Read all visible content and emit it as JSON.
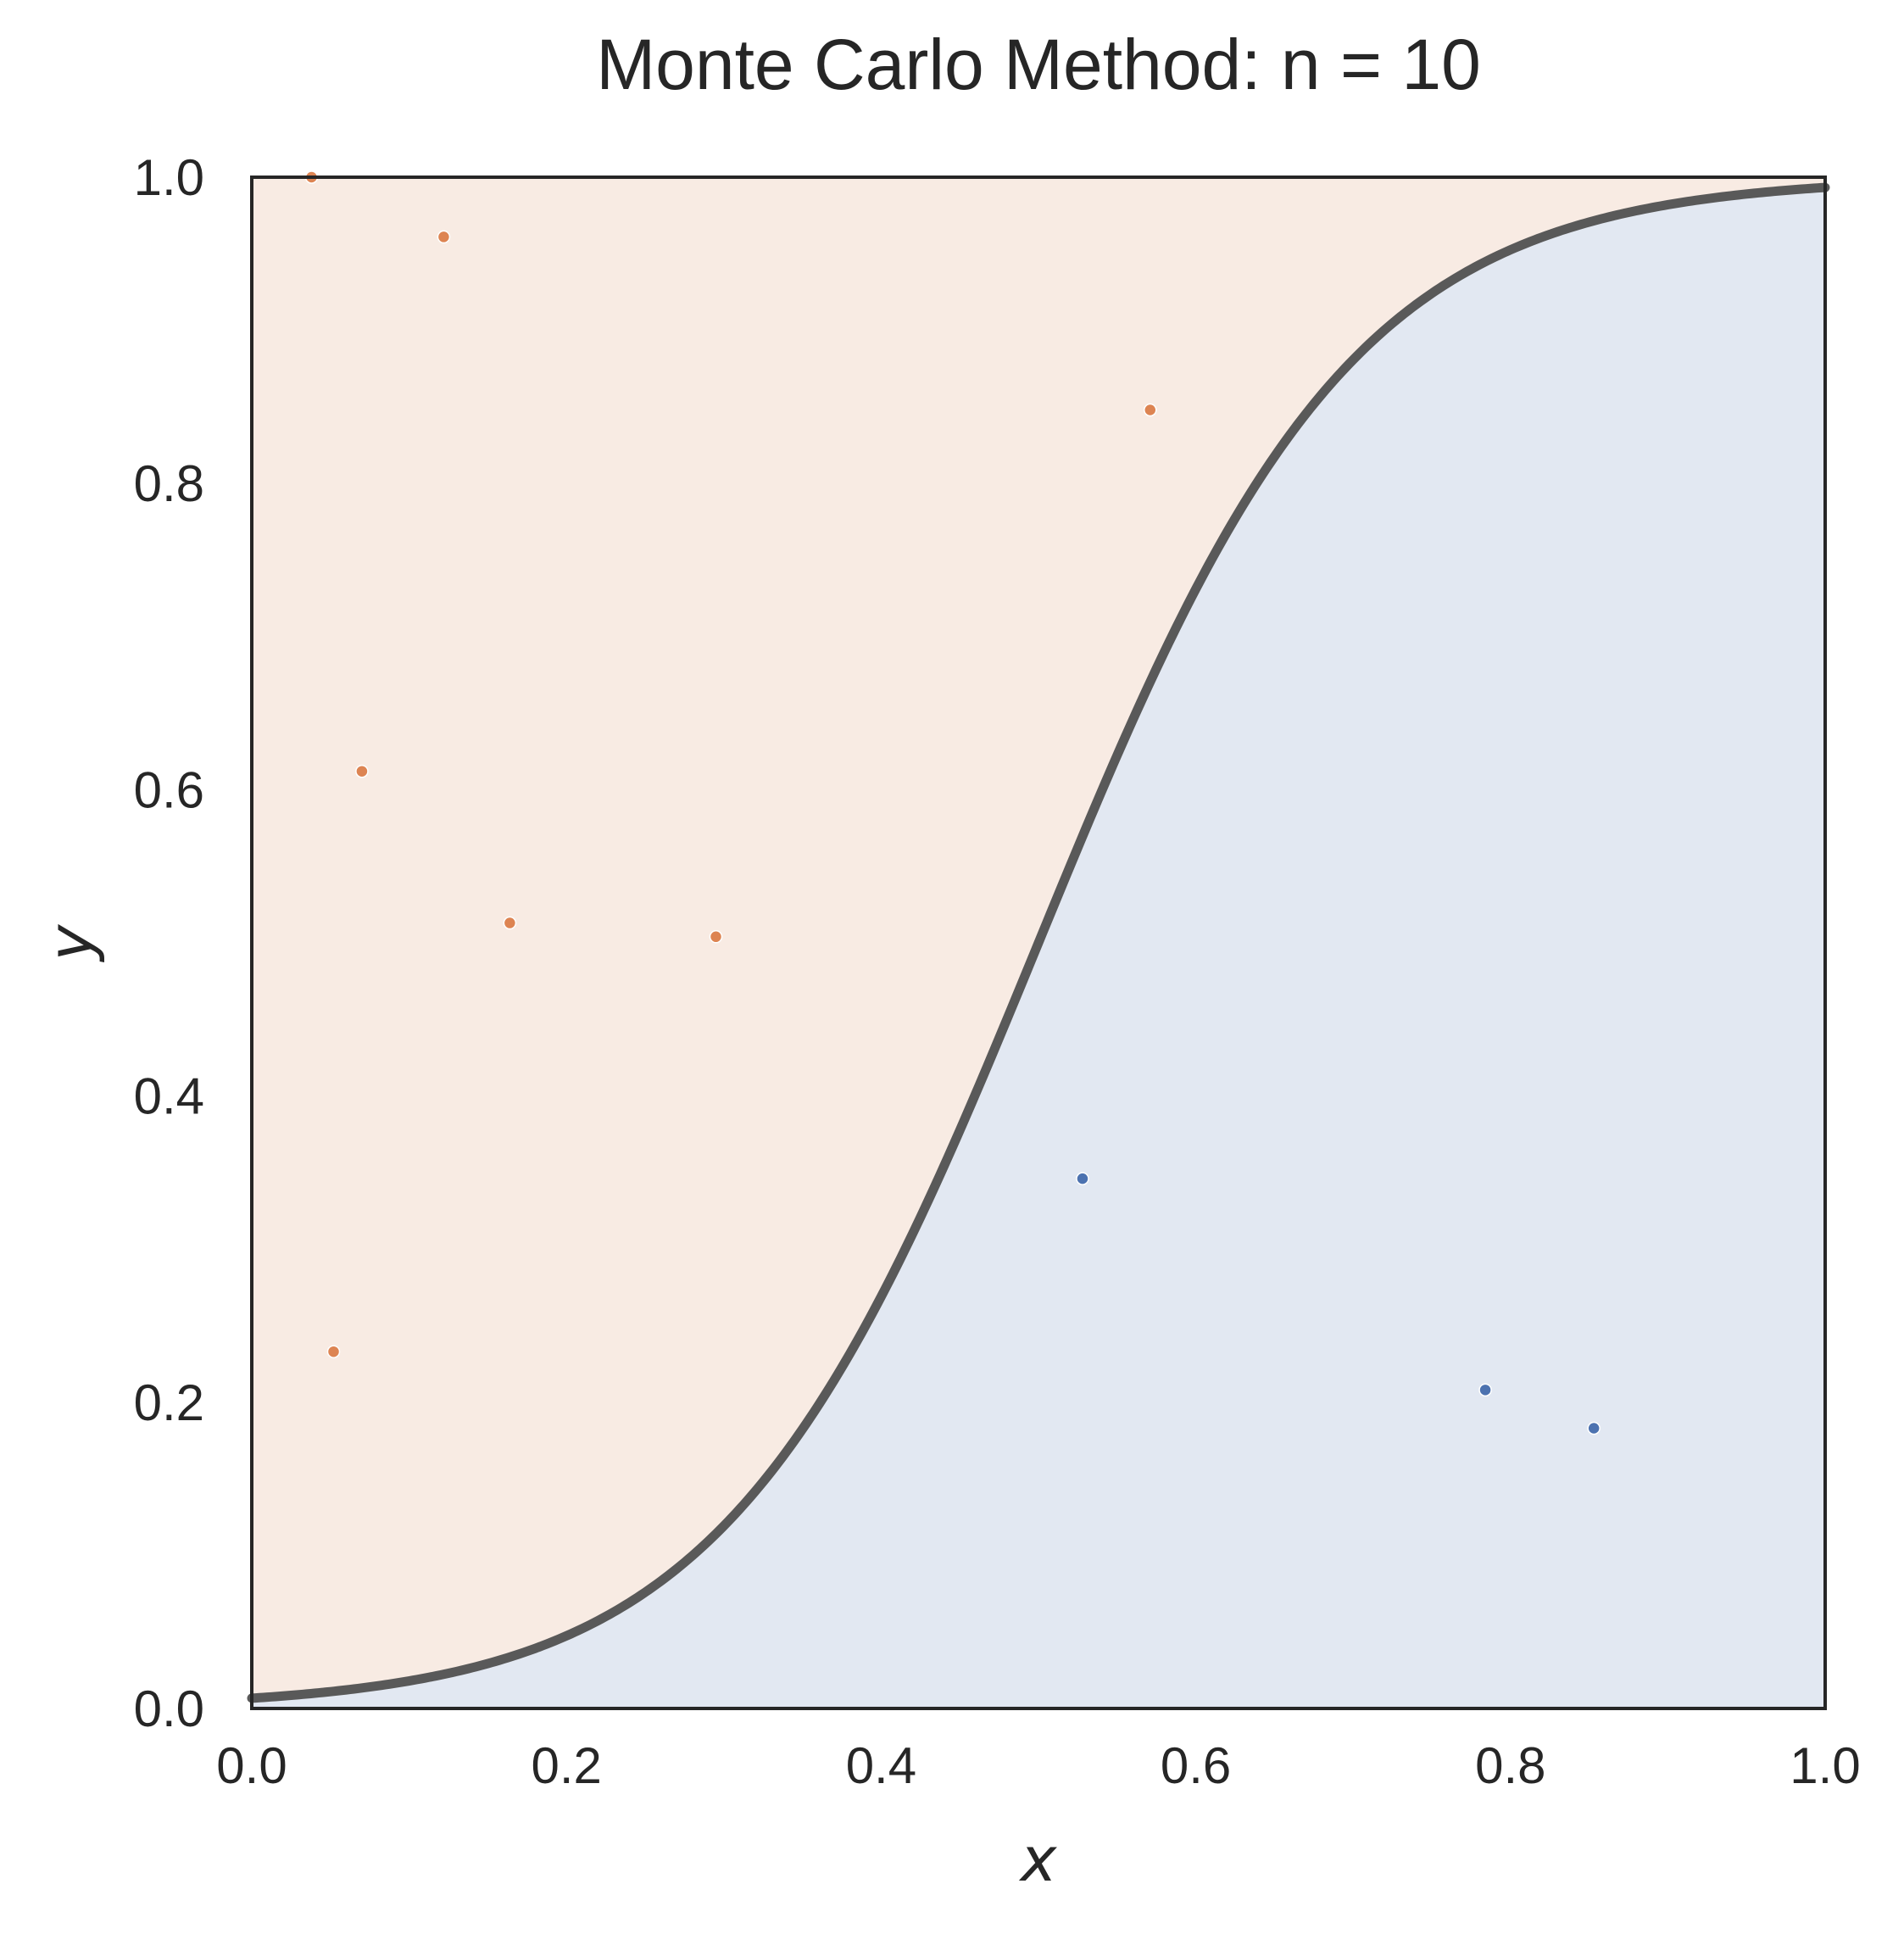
{
  "chart_data": {
    "type": "scatter",
    "title": "Monte Carlo Method: n = 10",
    "xlabel": "x",
    "ylabel": "y",
    "xlim": [
      0.0,
      1.0
    ],
    "ylim": [
      0.0,
      1.0
    ],
    "xticks": [
      "0.0",
      "0.2",
      "0.4",
      "0.6",
      "0.8",
      "1.0"
    ],
    "yticks": [
      "0.0",
      "0.2",
      "0.4",
      "0.6",
      "0.8",
      "1.0"
    ],
    "grid": false,
    "curve": {
      "description": "logistic curve",
      "color": "#595959",
      "k": 10,
      "midpoint": 0.5
    },
    "regions": {
      "above_color": "#f8ebe3",
      "below_color": "#e2e8f2"
    },
    "series": [
      {
        "color": "#dd8452",
        "points": [
          {
            "x": 0.038,
            "y": 1.0
          },
          {
            "x": 0.122,
            "y": 0.961
          },
          {
            "x": 0.07,
            "y": 0.612
          },
          {
            "x": 0.164,
            "y": 0.513
          },
          {
            "x": 0.295,
            "y": 0.504
          },
          {
            "x": 0.571,
            "y": 0.848
          },
          {
            "x": 0.052,
            "y": 0.233
          }
        ]
      },
      {
        "color": "#4c72b0",
        "points": [
          {
            "x": 0.528,
            "y": 0.346
          },
          {
            "x": 0.784,
            "y": 0.208
          },
          {
            "x": 0.853,
            "y": 0.183
          }
        ]
      }
    ]
  }
}
